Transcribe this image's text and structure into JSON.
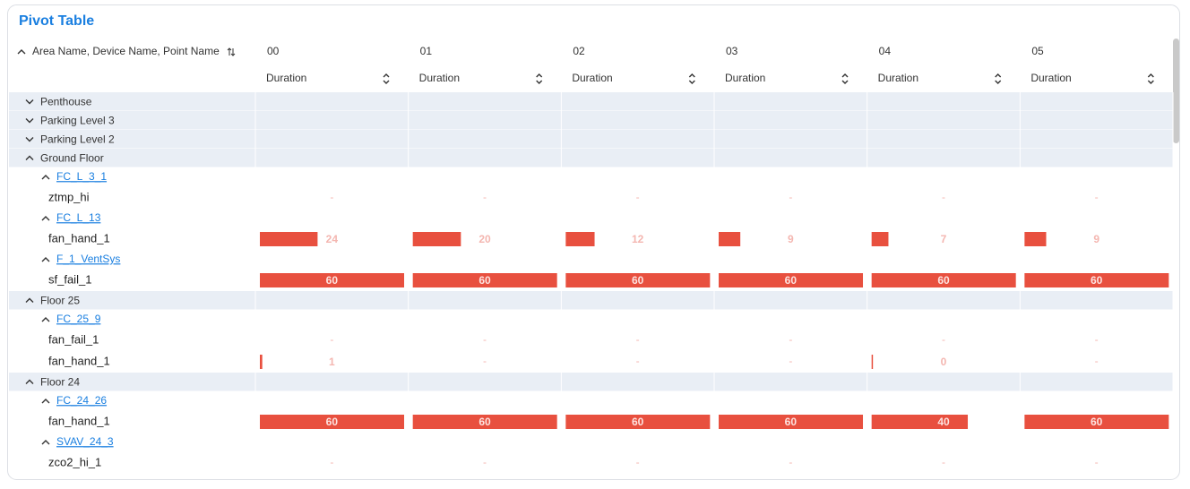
{
  "title": "Pivot Table",
  "row_header": "Area Name, Device Name, Point Name",
  "columns": [
    "00",
    "01",
    "02",
    "03",
    "04",
    "05"
  ],
  "measure": "Duration",
  "empty": "-",
  "areas": [
    {
      "name": "Penthouse"
    },
    {
      "name": "Parking Level 3"
    },
    {
      "name": "Parking Level 2"
    },
    {
      "name": "Ground Floor",
      "devices": [
        {
          "name": "FC_L_3_1",
          "points": [
            {
              "name": "ztmp_hi",
              "values": [
                null,
                null,
                null,
                null,
                null,
                null
              ]
            }
          ]
        },
        {
          "name": "FC_L_13",
          "points": [
            {
              "name": "fan_hand_1",
              "values": [
                24,
                20,
                12,
                9,
                7,
                9
              ]
            }
          ]
        },
        {
          "name": "F_1_VentSys",
          "points": [
            {
              "name": "sf_fail_1",
              "values": [
                60,
                60,
                60,
                60,
                60,
                60
              ]
            }
          ]
        }
      ]
    },
    {
      "name": "Floor 25",
      "devices": [
        {
          "name": "FC_25_9",
          "points": [
            {
              "name": "fan_fail_1",
              "values": [
                null,
                null,
                null,
                null,
                null,
                null
              ]
            },
            {
              "name": "fan_hand_1",
              "values": [
                1,
                null,
                null,
                null,
                0,
                null
              ]
            }
          ]
        }
      ]
    },
    {
      "name": "Floor 24",
      "devices": [
        {
          "name": "FC_24_26",
          "points": [
            {
              "name": "fan_hand_1",
              "values": [
                60,
                60,
                60,
                60,
                40,
                60
              ]
            }
          ]
        },
        {
          "name": "SVAV_24_3",
          "points": [
            {
              "name": "zco2_hi_1",
              "values": [
                null,
                null,
                null,
                null,
                null,
                null
              ]
            }
          ]
        }
      ]
    }
  ]
}
